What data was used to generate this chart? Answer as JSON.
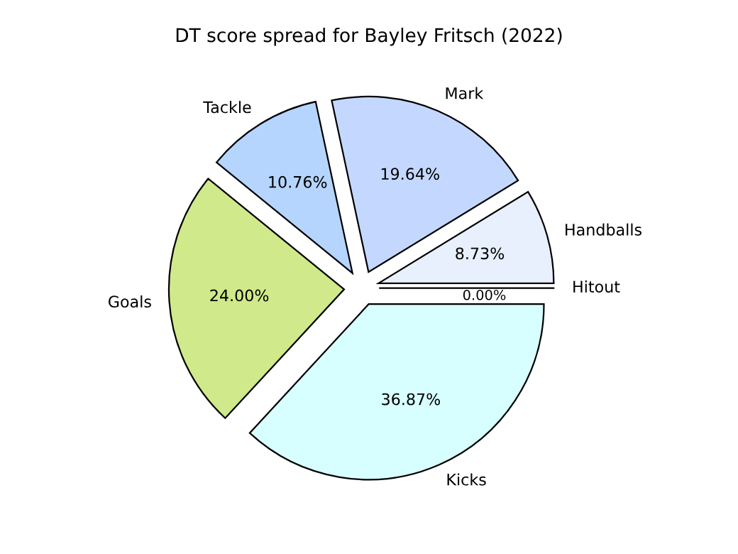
{
  "chart_data": {
    "type": "pie",
    "title": "DT score spread for Bayley Fritsch (2022)",
    "categories": [
      "Hitout",
      "Handballs",
      "Mark",
      "Tackle",
      "Goals",
      "Kicks"
    ],
    "values": [
      0.0,
      8.73,
      19.64,
      10.76,
      24.0,
      36.87
    ],
    "value_labels": [
      "0.00%",
      "8.73%",
      "19.64%",
      "10.76%",
      "24.00%",
      "36.87%"
    ],
    "colors": [
      "#ffe0e0",
      "#e8f0fe",
      "#c4d8ff",
      "#b5d5ff",
      "#d0e98a",
      "#d8ffff"
    ]
  }
}
